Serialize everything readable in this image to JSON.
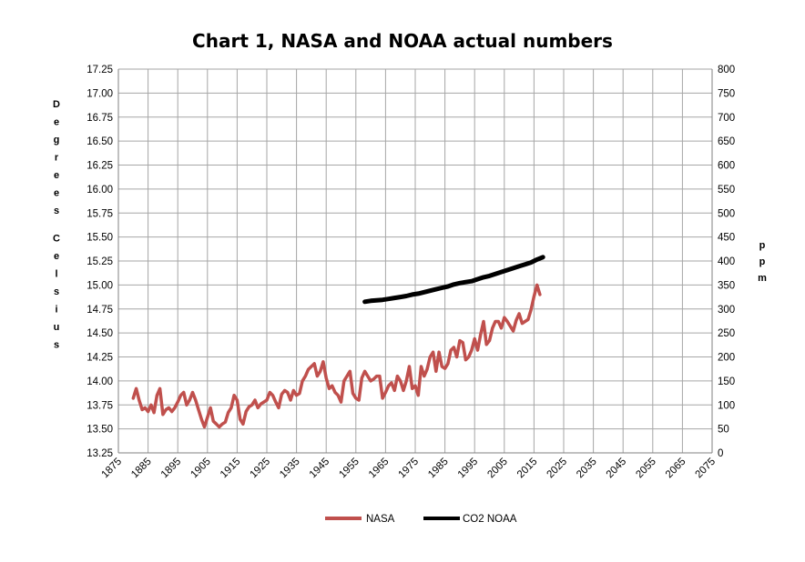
{
  "chart_data": {
    "type": "line",
    "title": "Chart 1, NASA and NOAA actual numbers",
    "ylabel": "Degrees Celsius",
    "y2label": "ppm",
    "xlim": [
      1875,
      2075
    ],
    "x_ticks": [
      "1875",
      "1885",
      "1895",
      "1905",
      "1915",
      "1925",
      "1935",
      "1945",
      "1955",
      "1965",
      "1975",
      "1985",
      "1995",
      "2005",
      "2015",
      "2025",
      "2035",
      "2045",
      "2055",
      "2065",
      "2075"
    ],
    "ylim": [
      13.25,
      17.25
    ],
    "y_ticks": [
      "13.25",
      "13.50",
      "13.75",
      "14.00",
      "14.25",
      "14.50",
      "14.75",
      "15.00",
      "15.25",
      "15.50",
      "15.75",
      "16.00",
      "16.25",
      "16.50",
      "16.75",
      "17.00",
      "17.25"
    ],
    "y2lim": [
      0,
      800
    ],
    "y2_ticks": [
      "0",
      "50",
      "100",
      "150",
      "200",
      "250",
      "300",
      "350",
      "400",
      "450",
      "500",
      "550",
      "600",
      "650",
      "700",
      "750",
      "800"
    ],
    "grid": true,
    "legend_position": "bottom",
    "series": [
      {
        "name": "NASA",
        "axis": "left",
        "color": "#c0504d",
        "x": [
          1880,
          1881,
          1882,
          1883,
          1884,
          1885,
          1886,
          1887,
          1888,
          1889,
          1890,
          1891,
          1892,
          1893,
          1894,
          1895,
          1896,
          1897,
          1898,
          1899,
          1900,
          1901,
          1902,
          1903,
          1904,
          1905,
          1906,
          1907,
          1908,
          1909,
          1910,
          1911,
          1912,
          1913,
          1914,
          1915,
          1916,
          1917,
          1918,
          1919,
          1920,
          1921,
          1922,
          1923,
          1924,
          1925,
          1926,
          1927,
          1928,
          1929,
          1930,
          1931,
          1932,
          1933,
          1934,
          1935,
          1936,
          1937,
          1938,
          1939,
          1940,
          1941,
          1942,
          1943,
          1944,
          1945,
          1946,
          1947,
          1948,
          1949,
          1950,
          1951,
          1952,
          1953,
          1954,
          1955,
          1956,
          1957,
          1958,
          1959,
          1960,
          1961,
          1962,
          1963,
          1964,
          1965,
          1966,
          1967,
          1968,
          1969,
          1970,
          1971,
          1972,
          1973,
          1974,
          1975,
          1976,
          1977,
          1978,
          1979,
          1980,
          1981,
          1982,
          1983,
          1984,
          1985,
          1986,
          1987,
          1988,
          1989,
          1990,
          1991,
          1992,
          1993,
          1994,
          1995,
          1996,
          1997,
          1998,
          1999,
          2000,
          2001,
          2002,
          2003,
          2004,
          2005,
          2006,
          2007,
          2008,
          2009,
          2010,
          2011,
          2012,
          2013,
          2014,
          2015,
          2016,
          2017
        ],
        "values": [
          13.82,
          13.92,
          13.8,
          13.7,
          13.72,
          13.68,
          13.75,
          13.67,
          13.85,
          13.92,
          13.65,
          13.7,
          13.72,
          13.68,
          13.72,
          13.78,
          13.85,
          13.88,
          13.75,
          13.8,
          13.88,
          13.8,
          13.7,
          13.6,
          13.52,
          13.62,
          13.72,
          13.58,
          13.55,
          13.52,
          13.55,
          13.57,
          13.67,
          13.72,
          13.85,
          13.8,
          13.6,
          13.55,
          13.68,
          13.73,
          13.75,
          13.8,
          13.72,
          13.76,
          13.78,
          13.8,
          13.88,
          13.85,
          13.78,
          13.72,
          13.86,
          13.9,
          13.88,
          13.8,
          13.9,
          13.85,
          13.87,
          14.0,
          14.05,
          14.12,
          14.15,
          14.18,
          14.05,
          14.1,
          14.2,
          14.03,
          13.92,
          13.95,
          13.88,
          13.85,
          13.78,
          14.0,
          14.05,
          14.1,
          13.87,
          13.82,
          13.8,
          14.03,
          14.1,
          14.05,
          14.0,
          14.02,
          14.05,
          14.05,
          13.82,
          13.88,
          13.95,
          13.98,
          13.9,
          14.05,
          14.0,
          13.9,
          14.0,
          14.15,
          13.92,
          13.95,
          13.85,
          14.15,
          14.05,
          14.12,
          14.25,
          14.3,
          14.1,
          14.3,
          14.15,
          14.13,
          14.18,
          14.32,
          14.35,
          14.25,
          14.42,
          14.4,
          14.22,
          14.25,
          14.32,
          14.44,
          14.32,
          14.48,
          14.62,
          14.38,
          14.42,
          14.55,
          14.62,
          14.62,
          14.55,
          14.66,
          14.62,
          14.57,
          14.52,
          14.63,
          14.7,
          14.6,
          14.62,
          14.64,
          14.74,
          14.88,
          15.0,
          14.9
        ]
      },
      {
        "name": "CO2 NOAA",
        "axis": "right",
        "color": "#000000",
        "x": [
          1958,
          1960,
          1962,
          1964,
          1966,
          1968,
          1970,
          1972,
          1974,
          1976,
          1978,
          1980,
          1982,
          1984,
          1986,
          1988,
          1990,
          1992,
          1994,
          1996,
          1998,
          2000,
          2002,
          2004,
          2006,
          2008,
          2010,
          2012,
          2014,
          2016,
          2018
        ],
        "values": [
          315,
          317,
          318,
          319,
          321,
          323,
          325,
          327,
          330,
          332,
          335,
          338,
          341,
          344,
          347,
          351,
          354,
          356,
          358,
          362,
          366,
          369,
          373,
          377,
          381,
          385,
          389,
          393,
          397,
          403,
          408
        ]
      }
    ]
  }
}
